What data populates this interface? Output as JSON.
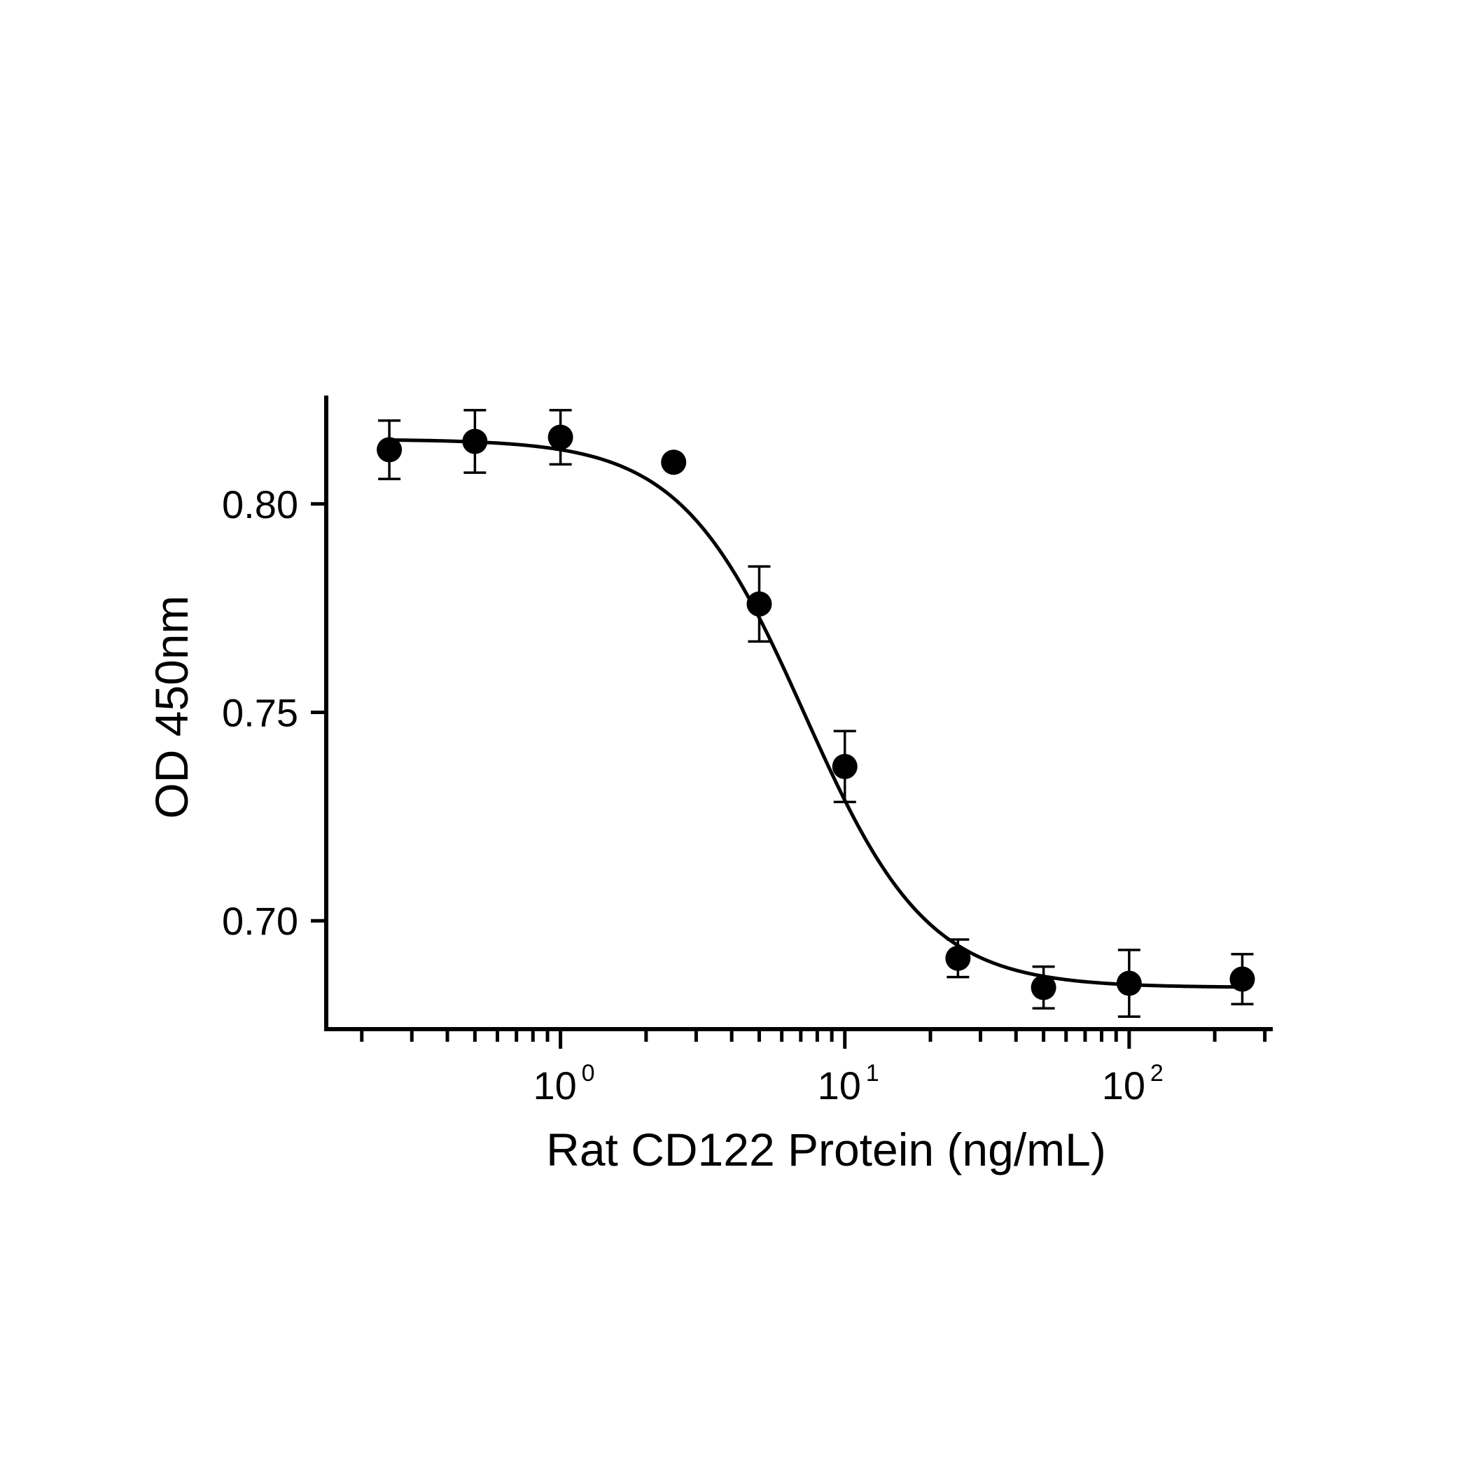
{
  "chart_data": {
    "type": "scatter",
    "xlabel": "Rat CD122 Protein (ng/mL)",
    "ylabel": "OD 450nm",
    "xscale": "log",
    "xlim": [
      0.15,
      320
    ],
    "ylim": [
      0.674,
      0.826
    ],
    "yticks": [
      0.7,
      0.75,
      0.8
    ],
    "ytick_labels": [
      "0.70",
      "0.75",
      "0.80"
    ],
    "xticks": [
      1,
      10,
      100
    ],
    "xtick_labels": [
      {
        "base": "10",
        "exp": "0"
      },
      {
        "base": "10",
        "exp": "1"
      },
      {
        "base": "10",
        "exp": "2"
      }
    ],
    "grid": false,
    "legend": "none",
    "colors": {
      "line": "#000000",
      "marker": "#000000",
      "axis": "#000000"
    },
    "series": [
      {
        "x": [
          0.25,
          0.5,
          1,
          2.5,
          5,
          10,
          25,
          50,
          100,
          250
        ],
        "y": [
          0.813,
          0.815,
          0.816,
          0.81,
          0.776,
          0.737,
          0.691,
          0.684,
          0.685,
          0.686
        ],
        "error": [
          0.007,
          0.0075,
          0.0065,
          0,
          0.009,
          0.0085,
          0.0045,
          0.005,
          0.008,
          0.006
        ]
      }
    ],
    "fit": {
      "model": "4PL",
      "top": 0.8155,
      "bottom": 0.684,
      "ec50": 7.2,
      "hill": 2.0,
      "x_range": [
        0.25,
        250
      ]
    }
  }
}
